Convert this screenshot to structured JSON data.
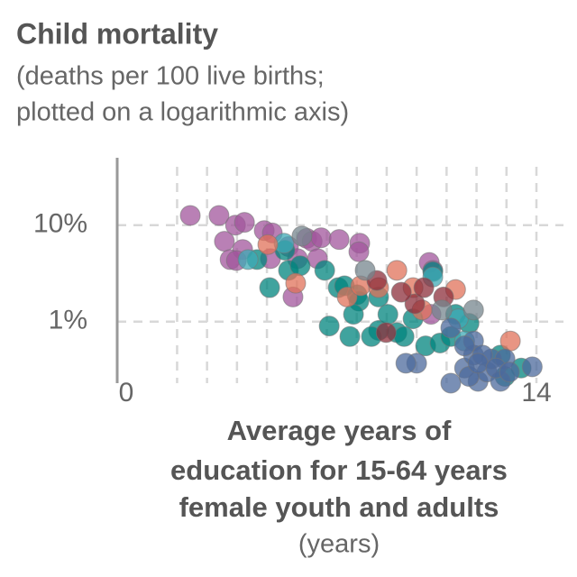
{
  "chart_data": {
    "type": "scatter",
    "title": "Child mortality",
    "subtitle": [
      "(deaths per 100 live births;",
      "plotted on a logarithmic axis)"
    ],
    "xlabel": [
      "Average years of",
      "education for 15-64 years",
      "female youth and adults",
      "(years)"
    ],
    "xlim": [
      0,
      14
    ],
    "xticks": [
      0,
      14
    ],
    "xgrid": [
      2,
      3,
      4,
      5,
      6,
      7,
      8,
      9,
      10,
      11,
      12,
      13,
      14
    ],
    "ylim": [
      0.23,
      50
    ],
    "ylog": true,
    "yticks": [
      {
        "value": 10,
        "label": "10%"
      },
      {
        "value": 1,
        "label": "1%"
      }
    ],
    "grid": true,
    "series": [
      {
        "color": "#a2559c",
        "x": [
          2.44,
          3.4,
          3.58,
          3.95,
          4.25,
          3.77,
          4.19,
          4.91,
          5.18,
          5.12,
          5.72,
          6.33,
          6.51,
          6.81,
          7.41,
          8.1,
          8.07,
          6.69,
          6.02,
          10.42,
          10.54,
          10.48,
          5.87,
          3.98
        ],
        "values": [
          12.6,
          12.6,
          6.8,
          10,
          10.7,
          4.4,
          5.6,
          8.8,
          8.3,
          4.5,
          6.0,
          7.3,
          6.8,
          7.4,
          7.1,
          6.5,
          5.3,
          4.5,
          4.5,
          4.1,
          3.4,
          1.19,
          1.8,
          4.3
        ]
      },
      {
        "color": "#00847e",
        "x": [
          4.67,
          5.6,
          5.09,
          5.72,
          6.11,
          6.93,
          7.38,
          7.59,
          8.01,
          8.07,
          7.89,
          7.08,
          7.77,
          8.73,
          8.49,
          9.34,
          9.58,
          9.88,
          10.3,
          10.78,
          11.14,
          11.3,
          11.75,
          12.8,
          13.49,
          12.95,
          10.54,
          9.04,
          8.73
        ],
        "values": [
          4.4,
          5.5,
          2.25,
          3.4,
          3.8,
          3.4,
          2.25,
          2.35,
          1.9,
          1.63,
          1.19,
          0.9,
          0.7,
          0.81,
          0.7,
          0.77,
          0.7,
          1.07,
          0.56,
          0.6,
          0.7,
          1.19,
          0.96,
          0.45,
          0.33,
          0.27,
          3.3,
          1.19,
          1.8
        ]
      },
      {
        "color": "#3fa9b5",
        "x": [
          4.37,
          5.57,
          10.54,
          11.39,
          11.6
        ],
        "values": [
          4.4,
          6.5,
          2.9,
          1.07,
          0.63
        ]
      },
      {
        "color": "#e0715a",
        "x": [
          5.03,
          5.96,
          7.68,
          9.34,
          9.88,
          11.3,
          13.13,
          10.18,
          8.13,
          8.73
        ],
        "values": [
          6.3,
          2.5,
          1.8,
          3.4,
          2.25,
          2.15,
          0.63,
          1.32,
          2.35,
          2.25
        ]
      },
      {
        "color": "#8c2f3b",
        "x": [
          8.67,
          8.98,
          9.94,
          10.9,
          9.49,
          10.24
        ],
        "values": [
          2.67,
          0.77,
          1.53,
          1.8,
          2.02,
          2.25
        ]
      },
      {
        "color": "#76868e",
        "x": [
          6.17,
          8.28,
          10.84,
          11.9
        ],
        "values": [
          7.7,
          3.4,
          1.32,
          1.32
        ]
      },
      {
        "color": "#4c6a9c",
        "x": [
          10.0,
          9.64,
          11.14,
          11.6,
          11.9,
          12.05,
          12.35,
          12.5,
          12.8,
          11.9,
          11.6,
          11.14,
          11.75,
          12.2,
          12.95,
          13.86,
          12.05,
          12.65,
          13.1
        ],
        "values": [
          0.37,
          0.37,
          0.23,
          0.33,
          0.45,
          0.24,
          0.3,
          0.41,
          0.24,
          0.63,
          0.56,
          0.86,
          0.27,
          0.45,
          0.41,
          0.34,
          0.37,
          0.33,
          0.3
        ]
      }
    ]
  }
}
